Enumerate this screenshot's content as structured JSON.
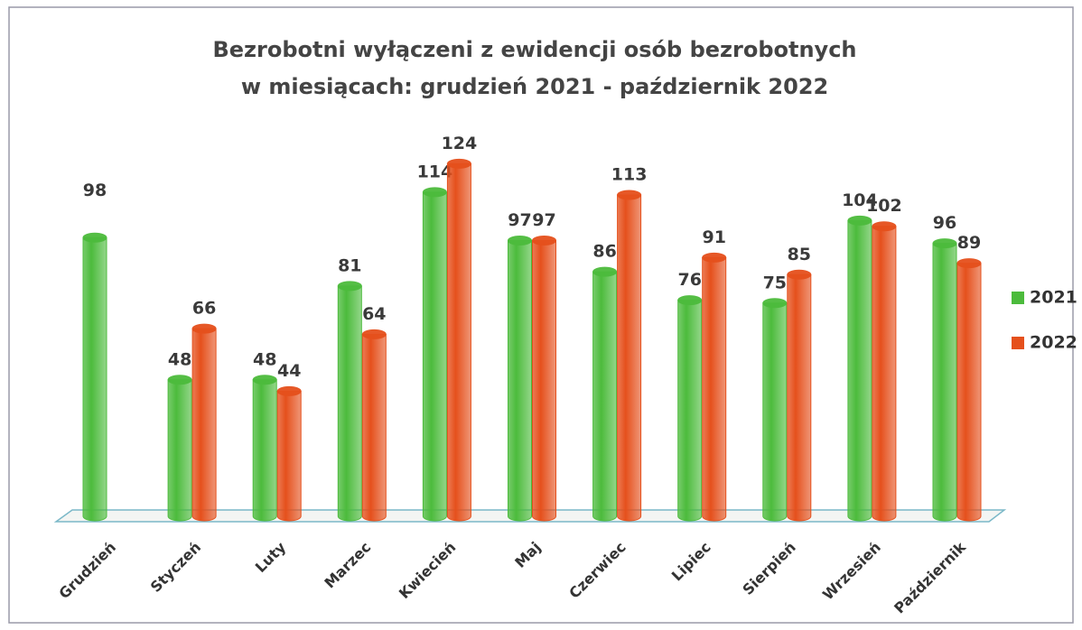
{
  "chart_data": {
    "type": "bar",
    "title": [
      "Bezrobotni wyłączeni z ewidencji osób bezrobotnych",
      "w miesiącach: grudzień 2021 - październik 2022"
    ],
    "categories": [
      "Grudzień",
      "Styczeń",
      "Luty",
      "Marzec",
      "Kwiecień",
      "Maj",
      "Czerwiec",
      "Lipiec",
      "Sierpień",
      "Wrzesień",
      "Październik"
    ],
    "series": [
      {
        "name": "2021",
        "color": "#4cbb3c",
        "values": [
          98,
          48,
          48,
          81,
          114,
          97,
          86,
          76,
          75,
          104,
          96
        ]
      },
      {
        "name": "2022",
        "color": "#e5501c",
        "values": [
          null,
          66,
          44,
          64,
          124,
          97,
          113,
          91,
          85,
          102,
          89
        ]
      }
    ],
    "legend": "right"
  }
}
